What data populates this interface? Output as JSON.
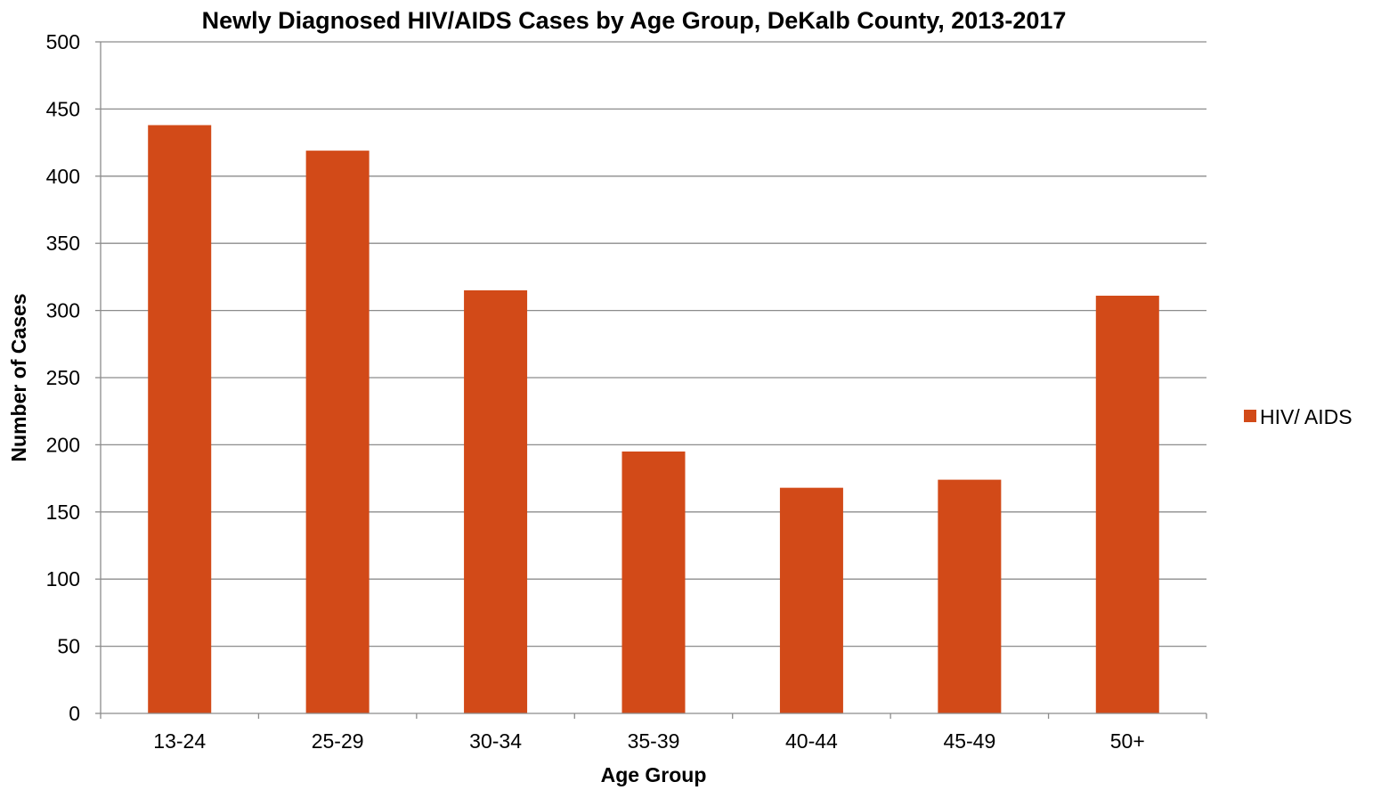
{
  "chart_data": {
    "type": "bar",
    "title": "Newly Diagnosed HIV/AIDS Cases by Age Group, DeKalb County, 2013-2017",
    "xlabel": "Age Group",
    "ylabel": "Number of Cases",
    "categories": [
      "13-24",
      "25-29",
      "30-34",
      "35-39",
      "40-44",
      "45-49",
      "50+"
    ],
    "series": [
      {
        "name": "HIV/ AIDS",
        "color": "#d24a18",
        "values": [
          438,
          419,
          315,
          195,
          168,
          174,
          311
        ]
      }
    ],
    "ylim": [
      0,
      500
    ],
    "yticks": [
      0,
      50,
      100,
      150,
      200,
      250,
      300,
      350,
      400,
      450,
      500
    ],
    "grid": true,
    "legend_position": "right"
  }
}
